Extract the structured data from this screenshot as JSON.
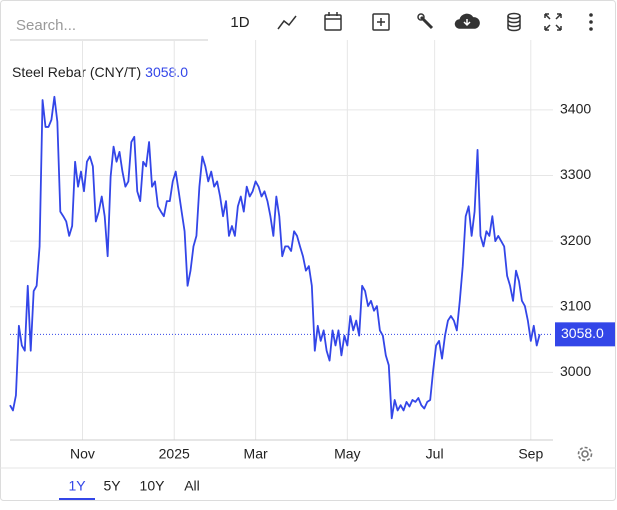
{
  "search_placeholder": "Search...",
  "toolbar": {
    "interval": "1D"
  },
  "ranges": [
    "1Y",
    "5Y",
    "10Y",
    "All"
  ],
  "active_range": 0,
  "chart_data": {
    "type": "line",
    "title": "Steel Rebar (CNY/T)",
    "last_price": {
      "value": 3058,
      "label": "3058.0"
    },
    "xlim": [
      0,
      367
    ],
    "xticks": [
      {
        "value": 49,
        "label": "Nov"
      },
      {
        "value": 111,
        "label": "2025"
      },
      {
        "value": 166,
        "label": "Mar"
      },
      {
        "value": 228,
        "label": "May"
      },
      {
        "value": 287,
        "label": "Jul"
      },
      {
        "value": 352,
        "label": "Sep"
      }
    ],
    "ylim": [
      2897,
      3476
    ],
    "yticks": [
      3000,
      3100,
      3200,
      3300,
      3400
    ],
    "grid": true,
    "series": [
      {
        "name": "Steel Rebar (CNY/T)",
        "color": "#3346e8",
        "x": [
          0,
          2,
          4,
          6,
          8,
          10,
          12,
          14,
          16,
          18,
          20,
          22,
          24,
          26,
          28,
          30,
          32,
          34,
          36,
          38,
          40,
          42,
          44,
          46,
          48,
          50,
          52,
          54,
          56,
          58,
          60,
          62,
          64,
          66,
          68,
          70,
          72,
          74,
          76,
          78,
          80,
          82,
          84,
          86,
          88,
          90,
          92,
          94,
          96,
          98,
          100,
          102,
          104,
          106,
          108,
          110,
          112,
          114,
          116,
          118,
          120,
          122,
          124,
          126,
          128,
          130,
          132,
          134,
          136,
          138,
          140,
          142,
          144,
          146,
          148,
          150,
          152,
          154,
          156,
          158,
          160,
          162,
          164,
          166,
          168,
          170,
          172,
          174,
          176,
          178,
          180,
          182,
          184,
          186,
          188,
          190,
          192,
          194,
          196,
          198,
          200,
          202,
          204,
          206,
          208,
          210,
          212,
          214,
          216,
          218,
          220,
          222,
          224,
          226,
          228,
          230,
          232,
          234,
          236,
          238,
          240,
          242,
          244,
          246,
          248,
          250,
          252,
          254,
          256,
          258,
          260,
          262,
          264,
          266,
          268,
          270,
          272,
          274,
          276,
          278,
          280,
          282,
          284,
          286,
          288,
          290,
          292,
          294,
          296,
          298,
          300,
          302,
          304,
          306,
          308,
          310,
          312,
          314,
          316,
          318,
          320,
          322,
          324,
          326,
          328,
          330,
          332,
          334,
          336,
          338,
          340,
          342,
          344,
          346,
          348,
          350,
          352,
          354,
          356,
          358
        ],
        "values": [
          2950,
          2942,
          2965,
          3071,
          3041,
          3033,
          3132,
          3033,
          3124,
          3132,
          3192,
          3415,
          3374,
          3374,
          3385,
          3420,
          3382,
          3245,
          3238,
          3230,
          3208,
          3223,
          3321,
          3283,
          3306,
          3276,
          3321,
          3329,
          3314,
          3230,
          3245,
          3268,
          3238,
          3177,
          3298,
          3344,
          3321,
          3336,
          3306,
          3283,
          3291,
          3351,
          3359,
          3276,
          3261,
          3321,
          3314,
          3351,
          3283,
          3291,
          3253,
          3245,
          3238,
          3261,
          3261,
          3291,
          3306,
          3276,
          3245,
          3215,
          3132,
          3155,
          3192,
          3208,
          3283,
          3329,
          3314,
          3291,
          3306,
          3283,
          3291,
          3268,
          3238,
          3261,
          3208,
          3223,
          3208,
          3253,
          3268,
          3245,
          3283,
          3268,
          3276,
          3291,
          3283,
          3268,
          3276,
          3261,
          3238,
          3208,
          3268,
          3238,
          3177,
          3192,
          3192,
          3185,
          3215,
          3208,
          3192,
          3177,
          3155,
          3162,
          3132,
          3033,
          3071,
          3048,
          3064,
          3033,
          3018,
          3064,
          3041,
          3064,
          3026,
          3056,
          3041,
          3086,
          3064,
          3079,
          3056,
          3132,
          3124,
          3101,
          3109,
          3094,
          3101,
          3064,
          3056,
          3026,
          3011,
          2930,
          2958,
          2942,
          2950,
          2942,
          2955,
          2948,
          2958,
          2955,
          2961,
          2950,
          2945,
          2955,
          2958,
          3003,
          3041,
          3048,
          3021,
          3056,
          3079,
          3086,
          3079,
          3064,
          3109,
          3162,
          3238,
          3253,
          3208,
          3245,
          3339,
          3208,
          3192,
          3215,
          3208,
          3238,
          3200,
          3208,
          3200,
          3192,
          3147,
          3132,
          3109,
          3155,
          3139,
          3109,
          3101,
          3079,
          3048,
          3071,
          3041,
          3058
        ]
      }
    ]
  }
}
